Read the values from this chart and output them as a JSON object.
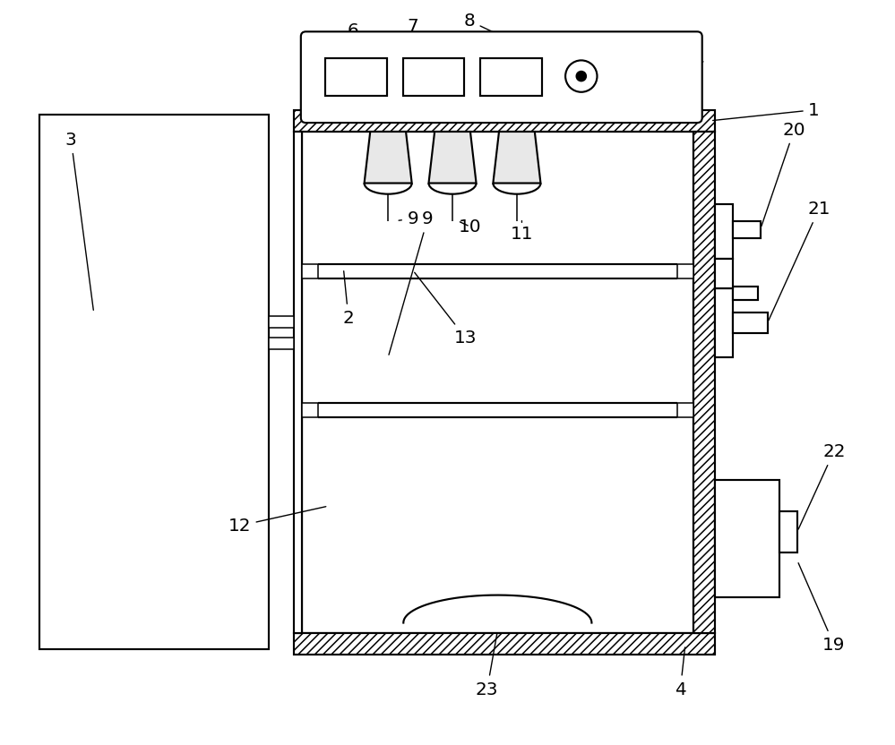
{
  "bg_color": "#ffffff",
  "line_color": "#000000",
  "fig_width": 9.0,
  "fig_height": 7.5,
  "font_size": 13,
  "lw": 1.4
}
